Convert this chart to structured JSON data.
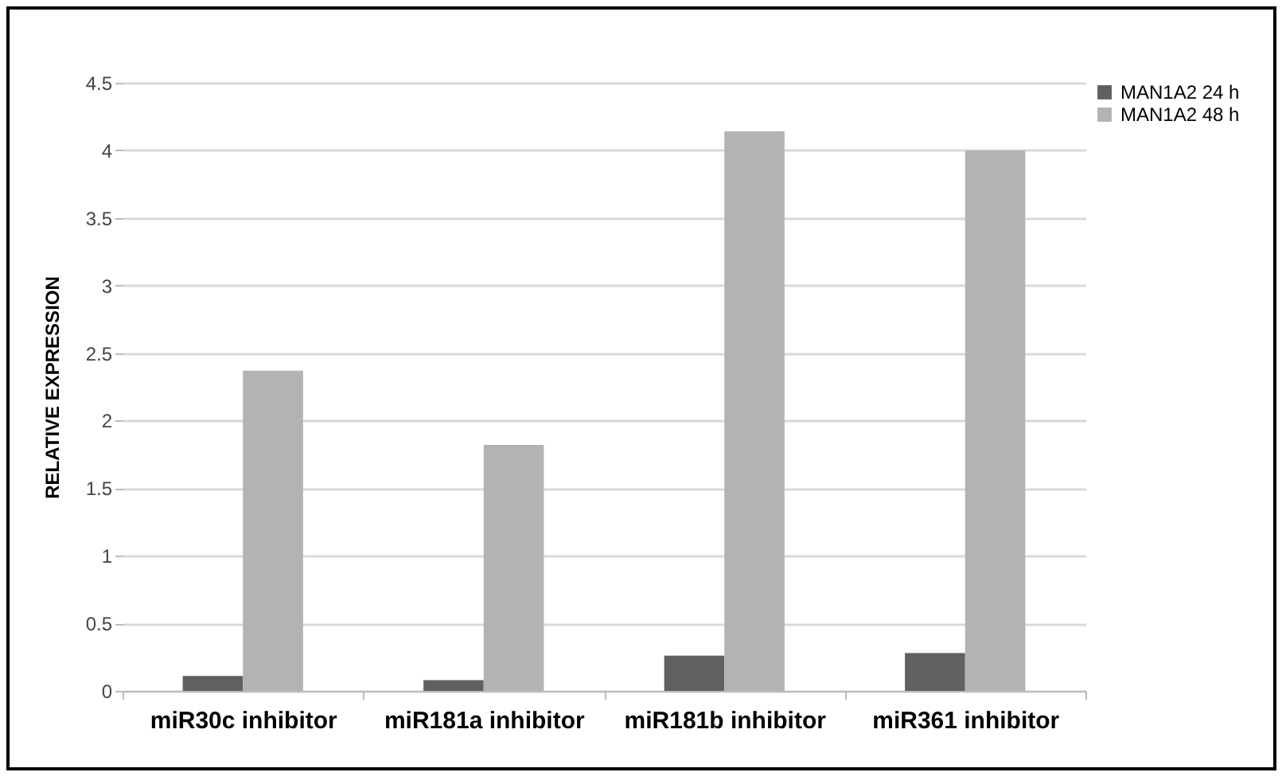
{
  "chart_data": {
    "type": "bar",
    "ylabel": "RELATIVE EXPRESSION",
    "categories": [
      "miR30c inhibitor",
      "miR181a inhibitor",
      "miR181b inhibitor",
      "miR361 inhibitor"
    ],
    "series": [
      {
        "name": "MAN1A2 24 h",
        "color": "#606060",
        "values": [
          0.11,
          0.08,
          0.26,
          0.28
        ]
      },
      {
        "name": "MAN1A2 48 h",
        "color": "#b3b3b3",
        "values": [
          2.37,
          1.82,
          4.14,
          4.0
        ]
      }
    ],
    "ylim": [
      0,
      4.5
    ],
    "yticks": [
      0,
      0.5,
      1,
      1.5,
      2,
      2.5,
      3,
      3.5,
      4,
      4.5
    ],
    "grid": "y",
    "legend": "right"
  }
}
